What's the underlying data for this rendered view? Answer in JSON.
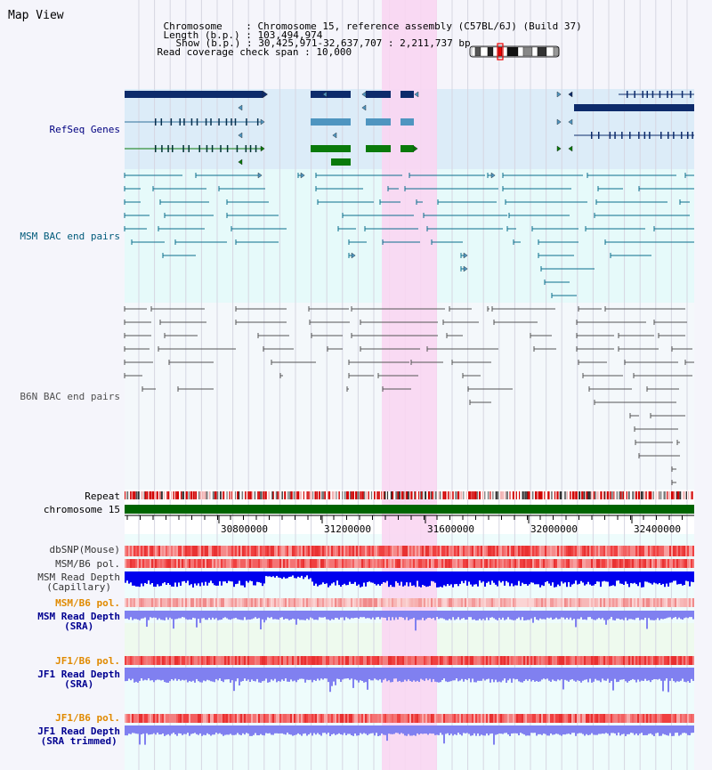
{
  "page": {
    "title": "Map View"
  },
  "info": {
    "chromosome_key": "Chromosome",
    "chromosome_value": "Chromosome 15, reference assembly (C57BL/6J) (Build 37)",
    "length_key": "Length (b.p.)",
    "length_value": "103,494,974",
    "show_key": "Show (b.p.)",
    "show_value": "30,425,971-32,637,707 : 2,211,737 bp",
    "coverage_key": "Read coverage check span",
    "coverage_value": "10,000"
  },
  "tracks": {
    "refseq": {
      "label": "RefSeq Genes",
      "color": "#000080"
    },
    "msm_bac": {
      "label": "MSM BAC end pairs",
      "color": "#005a7a"
    },
    "b6n_bac": {
      "label": "B6N BAC end pairs",
      "color": "#505050"
    },
    "repeat": {
      "label": "Repeat"
    },
    "chromosome": {
      "label": "chromosome 15",
      "color": "#006400"
    },
    "dbsnp": {
      "label": "dbSNP(Mouse)"
    },
    "msm_b6_pol": {
      "label": "MSM/B6 pol."
    },
    "msm_depth_cap": {
      "line1": "MSM Read Depth",
      "line2": "(Capillary)"
    },
    "msm_b6_pol2": {
      "label": "MSM/B6 pol.",
      "color": "#e08a00"
    },
    "msm_depth_sra": {
      "line1": "MSM Read Depth",
      "line2": "(SRA)",
      "color": "#000090"
    },
    "jf1_b6_pol": {
      "label": "JF1/B6 pol.",
      "color": "#e08a00"
    },
    "jf1_depth_sra": {
      "line1": "JF1 Read Depth",
      "line2": "(SRA)",
      "color": "#000090"
    },
    "jf1_b6_pol2": {
      "label": "JF1/B6 pol.",
      "color": "#e08a00"
    },
    "jf1_depth_trim": {
      "line1": "JF1 Read Depth",
      "line2": "(SRA trimmed)",
      "color": "#000090"
    }
  },
  "axis": {
    "ticks": [
      "30800000",
      "31200000",
      "31600000",
      "32000000",
      "32400000"
    ]
  },
  "colors": {
    "highlight": "#f9d6f2",
    "gene_navy": "#0d2b6b",
    "gene_teal": "#4f95c0",
    "gene_green": "#0a7a0a",
    "depth_dark": "#0000ee",
    "depth_light": "#8080f0",
    "pol_red": "#ee3030"
  }
}
